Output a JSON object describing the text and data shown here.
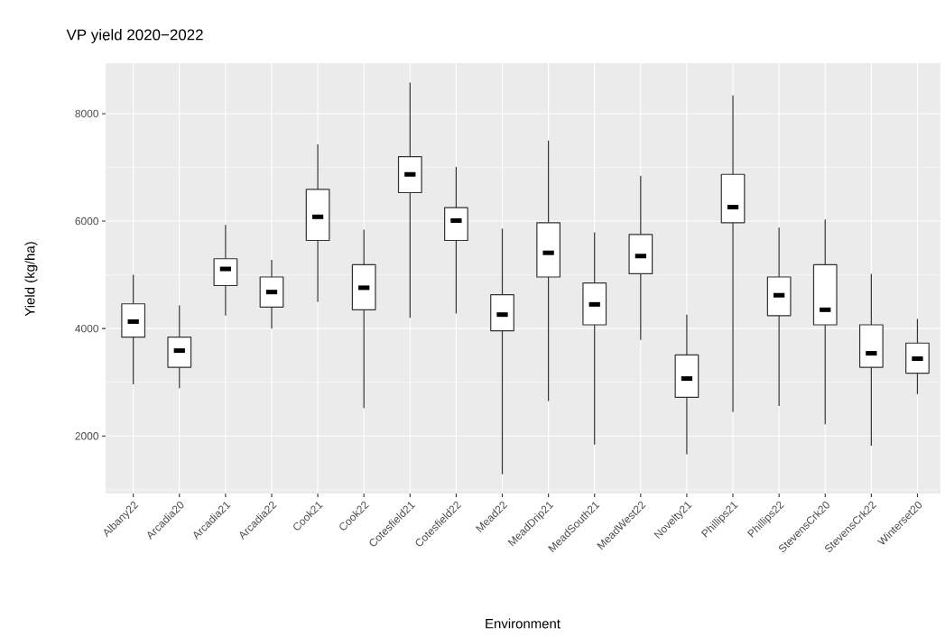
{
  "chart_data": {
    "type": "box",
    "title": "VP yield 2020−2022",
    "xlabel": "Environment",
    "ylabel": "Yield (kg/ha)",
    "categories": [
      "Albany22",
      "Arcadia20",
      "Arcadia21",
      "Arcadia22",
      "Cook21",
      "Cook22",
      "Cotesfield21",
      "Cotesfield22",
      "Mead22",
      "MeadDrip21",
      "MeadSouth21",
      "MeadWest22",
      "Novelty21",
      "Phillips21",
      "Phillips22",
      "StevensCrk20",
      "StevensCrk22",
      "Winterset20"
    ],
    "boxes": [
      {
        "low": 2960,
        "q1": 3840,
        "median": 4130,
        "q3": 4460,
        "high": 5000
      },
      {
        "low": 2890,
        "q1": 3280,
        "median": 3590,
        "q3": 3840,
        "high": 4430
      },
      {
        "low": 4240,
        "q1": 4800,
        "median": 5110,
        "q3": 5300,
        "high": 5930
      },
      {
        "low": 4000,
        "q1": 4400,
        "median": 4680,
        "q3": 4960,
        "high": 5280
      },
      {
        "low": 4500,
        "q1": 5640,
        "median": 6080,
        "q3": 6590,
        "high": 7430
      },
      {
        "low": 2520,
        "q1": 4350,
        "median": 4760,
        "q3": 5190,
        "high": 5840
      },
      {
        "low": 4200,
        "q1": 6530,
        "median": 6870,
        "q3": 7200,
        "high": 8580
      },
      {
        "low": 4280,
        "q1": 5640,
        "median": 6010,
        "q3": 6250,
        "high": 7010
      },
      {
        "low": 1290,
        "q1": 3960,
        "median": 4260,
        "q3": 4630,
        "high": 5860
      },
      {
        "low": 2650,
        "q1": 4960,
        "median": 5410,
        "q3": 5970,
        "high": 7500
      },
      {
        "low": 1840,
        "q1": 4070,
        "median": 4450,
        "q3": 4850,
        "high": 5790
      },
      {
        "low": 3790,
        "q1": 5020,
        "median": 5350,
        "q3": 5750,
        "high": 6840
      },
      {
        "low": 1660,
        "q1": 2720,
        "median": 3070,
        "q3": 3510,
        "high": 4260
      },
      {
        "low": 2450,
        "q1": 5970,
        "median": 6260,
        "q3": 6870,
        "high": 8340
      },
      {
        "low": 2560,
        "q1": 4240,
        "median": 4620,
        "q3": 4960,
        "high": 5880
      },
      {
        "low": 2220,
        "q1": 4070,
        "median": 4350,
        "q3": 5190,
        "high": 6030
      },
      {
        "low": 1820,
        "q1": 3280,
        "median": 3540,
        "q3": 4070,
        "high": 5020
      },
      {
        "low": 2780,
        "q1": 3170,
        "median": 3440,
        "q3": 3730,
        "high": 4180
      }
    ],
    "ylim": [
      930,
      8940
    ],
    "yticks": [
      2000,
      4000,
      6000,
      8000
    ],
    "grid": true
  }
}
